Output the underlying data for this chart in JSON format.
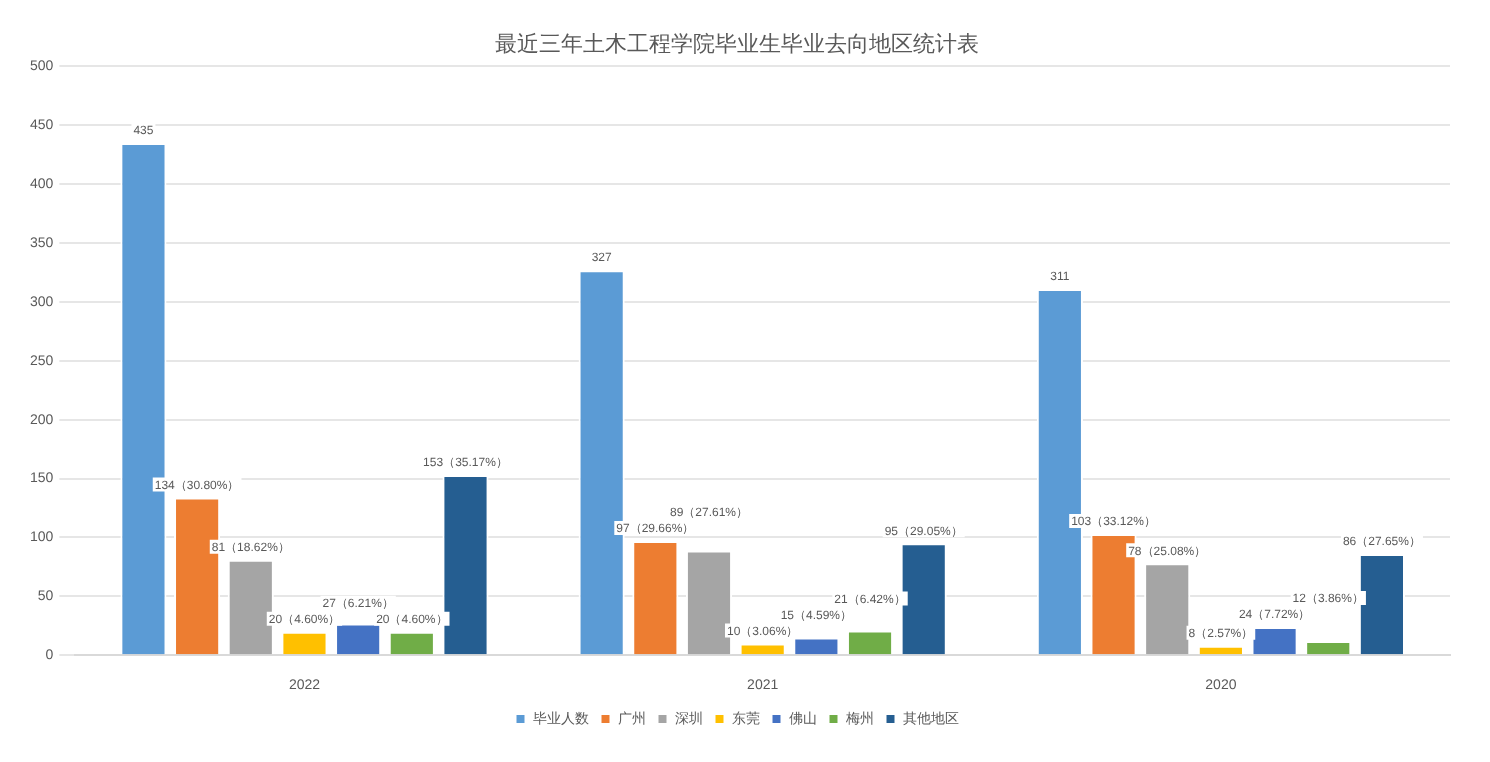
{
  "chart_data": {
    "type": "bar",
    "title": "最近三年土木工程学院毕业生毕业去向地区统计表",
    "categories": [
      "2022",
      "2021",
      "2020"
    ],
    "series": [
      {
        "name": "毕业人数",
        "color": "#5b9bd5",
        "values": [
          435,
          327,
          311
        ],
        "value_labels": [
          "435",
          "327",
          "311"
        ]
      },
      {
        "name": "广州",
        "color": "#ed7d31",
        "values": [
          134,
          97,
          103
        ],
        "value_labels": [
          "134（30.80%）",
          "97（29.66%）",
          "103（33.12%）"
        ]
      },
      {
        "name": "深圳",
        "color": "#a5a5a5",
        "values": [
          81,
          89,
          78
        ],
        "value_labels": [
          "81（18.62%）",
          "89（27.61%）",
          "78（25.08%）"
        ]
      },
      {
        "name": "东莞",
        "color": "#ffc000",
        "values": [
          20,
          10,
          8
        ],
        "value_labels": [
          "20（4.60%）",
          "10（3.06%）",
          "8（2.57%）"
        ]
      },
      {
        "name": "佛山",
        "color": "#4472c4",
        "values": [
          27,
          15,
          24
        ],
        "value_labels": [
          "27（6.21%）",
          "15（4.59%）",
          "24（7.72%）"
        ]
      },
      {
        "name": "梅州",
        "color": "#70ad47",
        "values": [
          20,
          21,
          12
        ],
        "value_labels": [
          "20（4.60%）",
          "21（6.42%）",
          "12（3.86%）"
        ]
      },
      {
        "name": "其他地区",
        "color": "#255e91",
        "values": [
          153,
          95,
          86
        ],
        "value_labels": [
          "153（35.17%）",
          "95（29.05%）",
          "86（27.65%）"
        ]
      }
    ],
    "ylim": [
      0,
      500
    ],
    "yticks": [
      0,
      50,
      100,
      150,
      200,
      250,
      300,
      350,
      400,
      450,
      500
    ],
    "grid": "y",
    "legend": "bottom"
  }
}
